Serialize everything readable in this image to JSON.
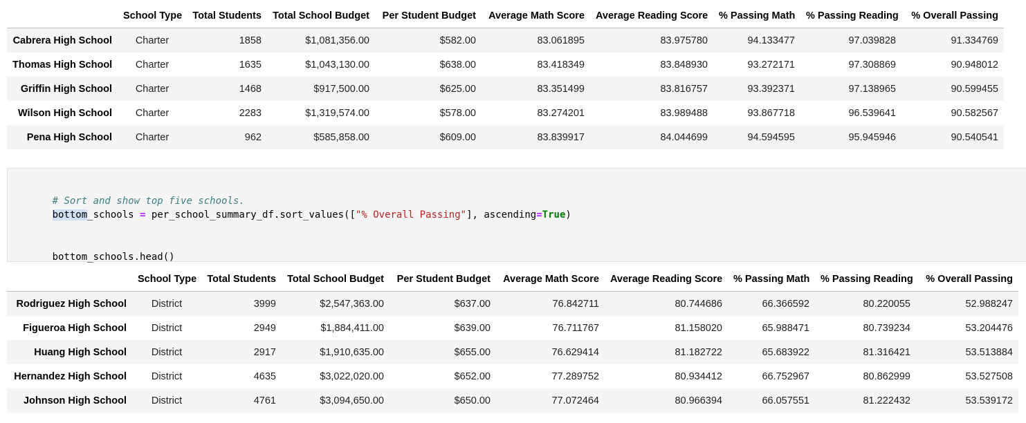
{
  "columns": [
    "School Type",
    "Total Students",
    "Total School Budget",
    "Per Student Budget",
    "Average Math Score",
    "Average Reading Score",
    "% Passing Math",
    "% Passing Reading",
    "% Overall Passing"
  ],
  "top_table": {
    "rows": [
      {
        "name": "Cabrera High School",
        "values": [
          "Charter",
          "1858",
          "$1,081,356.00",
          "$582.00",
          "83.061895",
          "83.975780",
          "94.133477",
          "97.039828",
          "91.334769"
        ]
      },
      {
        "name": "Thomas High School",
        "values": [
          "Charter",
          "1635",
          "$1,043,130.00",
          "$638.00",
          "83.418349",
          "83.848930",
          "93.272171",
          "97.308869",
          "90.948012"
        ]
      },
      {
        "name": "Griffin High School",
        "values": [
          "Charter",
          "1468",
          "$917,500.00",
          "$625.00",
          "83.351499",
          "83.816757",
          "93.392371",
          "97.138965",
          "90.599455"
        ]
      },
      {
        "name": "Wilson High School",
        "values": [
          "Charter",
          "2283",
          "$1,319,574.00",
          "$578.00",
          "83.274201",
          "83.989488",
          "93.867718",
          "96.539641",
          "90.582567"
        ]
      },
      {
        "name": "Pena High School",
        "values": [
          "Charter",
          "962",
          "$585,858.00",
          "$609.00",
          "83.839917",
          "84.044699",
          "94.594595",
          "95.945946",
          "90.540541"
        ]
      }
    ]
  },
  "code_cell": {
    "comment": "# Sort and show top five schools.",
    "line2_selected": "bottom",
    "line2_var_rest": "_schools",
    "line2_eq": "=",
    "line2_call": "per_school_summary_df.sort_values([",
    "line2_str": "\"% Overall Passing\"",
    "line2_mid": "], ascending",
    "line2_eq2": "=",
    "line2_kw": "True",
    "line2_end": ")",
    "line3": "bottom_schools.head()"
  },
  "bottom_table": {
    "rows": [
      {
        "name": "Rodriguez High School",
        "values": [
          "District",
          "3999",
          "$2,547,363.00",
          "$637.00",
          "76.842711",
          "80.744686",
          "66.366592",
          "80.220055",
          "52.988247"
        ]
      },
      {
        "name": "Figueroa High School",
        "values": [
          "District",
          "2949",
          "$1,884,411.00",
          "$639.00",
          "76.711767",
          "81.158020",
          "65.988471",
          "80.739234",
          "53.204476"
        ]
      },
      {
        "name": "Huang High School",
        "values": [
          "District",
          "2917",
          "$1,910,635.00",
          "$655.00",
          "76.629414",
          "81.182722",
          "65.683922",
          "81.316421",
          "53.513884"
        ]
      },
      {
        "name": "Hernandez High School",
        "values": [
          "District",
          "4635",
          "$3,022,020.00",
          "$652.00",
          "77.289752",
          "80.934412",
          "66.752967",
          "80.862999",
          "53.527508"
        ]
      },
      {
        "name": "Johnson High School",
        "values": [
          "District",
          "4761",
          "$3,094,650.00",
          "$650.00",
          "77.072464",
          "80.966394",
          "66.057551",
          "81.222432",
          "53.539172"
        ]
      }
    ]
  }
}
